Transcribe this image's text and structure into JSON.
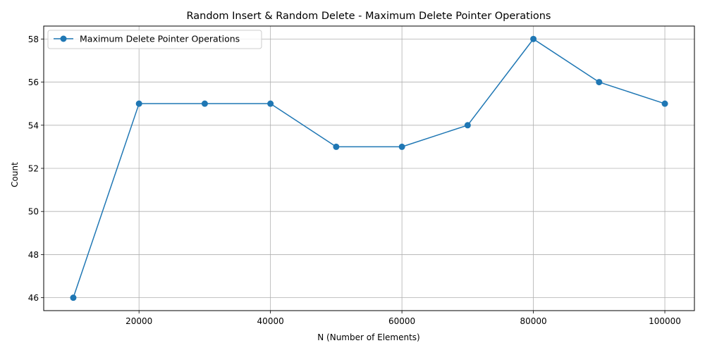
{
  "chart_data": {
    "type": "line",
    "title": "Random Insert & Random Delete - Maximum Delete Pointer Operations",
    "xlabel": "N (Number of Elements)",
    "ylabel": "Count",
    "x": [
      10000,
      20000,
      30000,
      40000,
      50000,
      60000,
      70000,
      80000,
      90000,
      100000
    ],
    "series": [
      {
        "name": "Maximum Delete Pointer Operations",
        "values": [
          46,
          55,
          55,
          55,
          53,
          53,
          54,
          58,
          56,
          55
        ],
        "color": "#1f77b4",
        "marker": "circle"
      }
    ],
    "xlim": [
      5500,
      104500
    ],
    "ylim": [
      45.4,
      58.6
    ],
    "xticks": [
      20000,
      40000,
      60000,
      80000,
      100000
    ],
    "yticks": [
      46,
      48,
      50,
      52,
      54,
      56,
      58
    ],
    "grid": true,
    "legend_position": "top-left"
  }
}
